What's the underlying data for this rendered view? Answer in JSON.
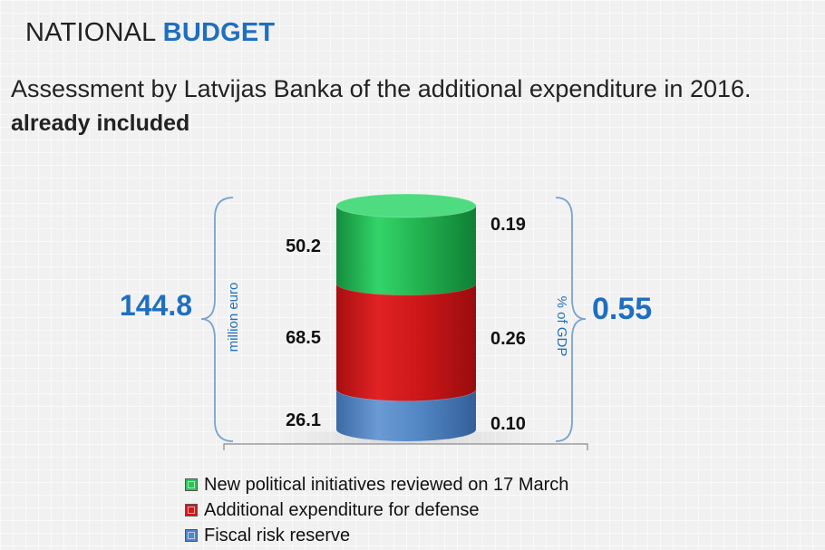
{
  "header": {
    "title_plain": "NATIONAL",
    "title_accent": "BUDGET",
    "subtitle": "Assessment by Latvijas Banka of the additional expenditure  in 2016.",
    "subtitle_bold": "already included"
  },
  "colors": {
    "accent": "#1f6fc0",
    "green": "#2bc25a",
    "red": "#d0181a",
    "blue": "#4f86c6",
    "bracket": "#7aa3cf"
  },
  "chart_data": {
    "type": "bar",
    "stacked": true,
    "categories": [
      ""
    ],
    "series": [
      {
        "name": "Fiscal risk reserve",
        "values": [
          26.1
        ],
        "share_gdp_label": "0.10",
        "color": "#4f86c6",
        "legend_icon": "blue-square-icon"
      },
      {
        "name": "Additional expenditure for defense",
        "values": [
          68.5
        ],
        "share_gdp_label": "0.26",
        "color": "#d0181a",
        "legend_icon": "red-square-icon"
      },
      {
        "name": "New political initiatives reviewed on 17 March",
        "values": [
          50.2
        ],
        "share_gdp_label": "0.19",
        "color": "#2bc25a",
        "legend_icon": "green-square-icon"
      }
    ],
    "value_labels": [
      "26.1",
      "68.5",
      "50.2"
    ],
    "total": {
      "value": 144.8,
      "label": "144.8",
      "unit": "million euro"
    },
    "total_gdp": {
      "value": 0.55,
      "label": "0.55",
      "unit": "% of GDP"
    },
    "ylim": [
      0,
      144.8
    ],
    "grid": false,
    "legend": "bottom"
  }
}
